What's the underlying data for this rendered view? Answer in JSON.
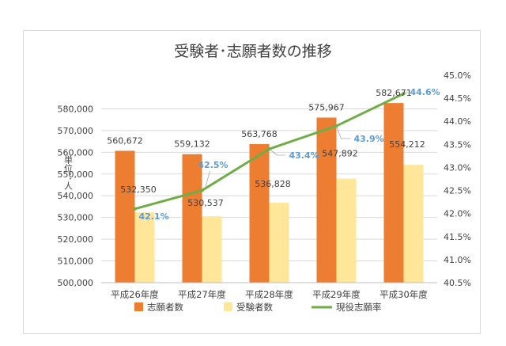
{
  "chart_data": {
    "type": "bar",
    "title": "受験者･志願者数の推移",
    "ylabel": "単位：人",
    "categories": [
      "平成26年度",
      "平成27年度",
      "平成28年度",
      "平成29年度",
      "平成30年度"
    ],
    "ylim": [
      500000,
      590000
    ],
    "yticks": [
      500000,
      510000,
      520000,
      530000,
      540000,
      550000,
      560000,
      570000,
      580000
    ],
    "ytick_labels": [
      "500,000",
      "510,000",
      "520,000",
      "530,000",
      "540,000",
      "550,000",
      "560,000",
      "570,000",
      "580,000"
    ],
    "y2lim": [
      40.5,
      45.0
    ],
    "y2ticks": [
      40.5,
      41.0,
      41.5,
      42.0,
      42.5,
      43.0,
      43.5,
      44.0,
      44.5,
      45.0
    ],
    "y2tick_labels": [
      "40.5%",
      "41.0%",
      "41.5%",
      "42.0%",
      "42.5%",
      "43.0%",
      "43.5%",
      "44.0%",
      "44.5%",
      "45.0%"
    ],
    "grid": true,
    "legend_position": "bottom",
    "series": [
      {
        "name": "志願者数",
        "type": "bar",
        "axis": "left",
        "color": "#ed7d31",
        "values": [
          560672,
          559132,
          563768,
          575967,
          582671
        ],
        "labels": [
          "560,672",
          "559,132",
          "563,768",
          "575,967",
          "582,671"
        ]
      },
      {
        "name": "受験者数",
        "type": "bar",
        "axis": "left",
        "color": "#ffe699",
        "values": [
          532350,
          530537,
          536828,
          547892,
          554212
        ],
        "labels": [
          "532,350",
          "530,537",
          "536,828",
          "547,892",
          "554,212"
        ]
      },
      {
        "name": "現役志願率",
        "type": "line",
        "axis": "right",
        "color": "#70ad47",
        "values": [
          42.1,
          42.5,
          43.4,
          43.9,
          44.6
        ],
        "labels": [
          "42.1%",
          "42.5%",
          "43.4%",
          "43.9%",
          "44.6%"
        ]
      }
    ]
  }
}
